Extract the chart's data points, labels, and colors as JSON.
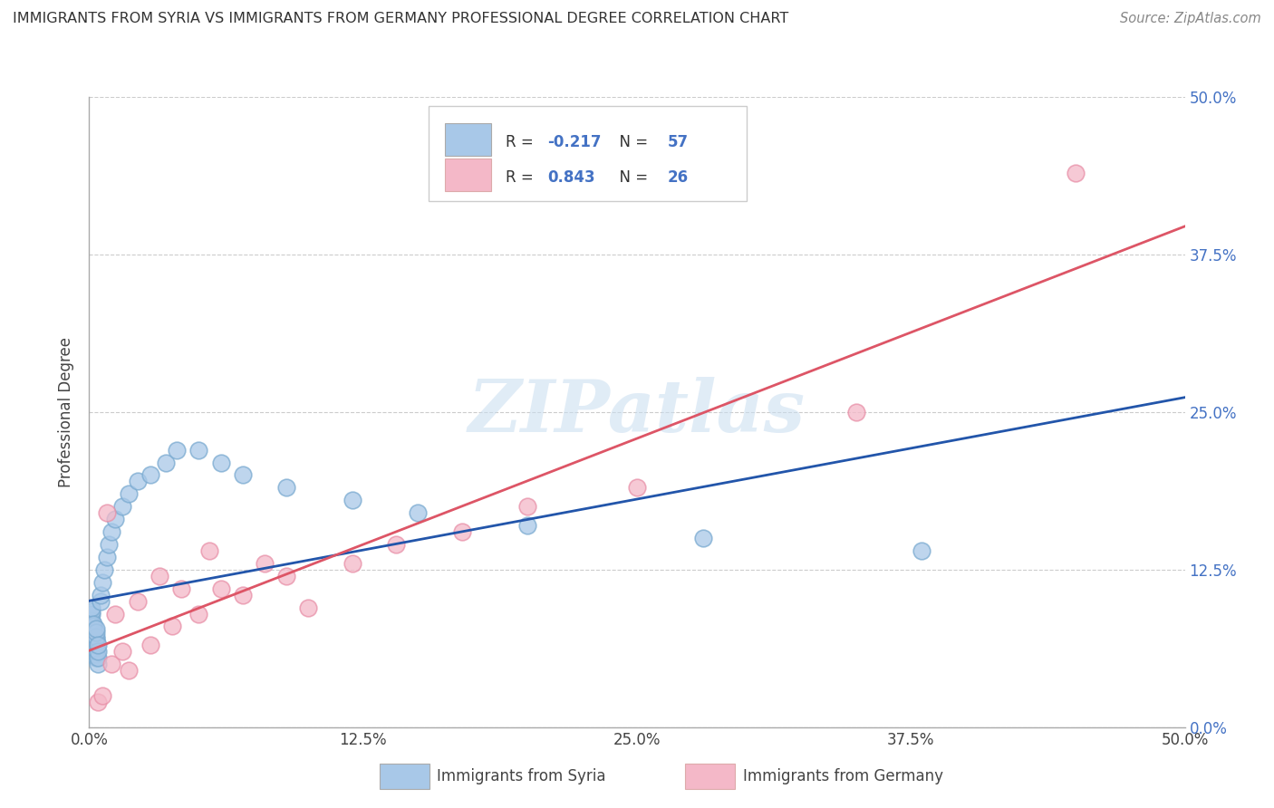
{
  "title": "IMMIGRANTS FROM SYRIA VS IMMIGRANTS FROM GERMANY PROFESSIONAL DEGREE CORRELATION CHART",
  "source": "Source: ZipAtlas.com",
  "ylabel": "Professional Degree",
  "x_tick_labels": [
    "0.0%",
    "12.5%",
    "25.0%",
    "37.5%",
    "50.0%"
  ],
  "y_tick_labels": [
    "0.0%",
    "12.5%",
    "25.0%",
    "37.5%",
    "50.0%"
  ],
  "x_ticks": [
    0.0,
    0.125,
    0.25,
    0.375,
    0.5
  ],
  "y_ticks": [
    0.0,
    0.125,
    0.25,
    0.375,
    0.5
  ],
  "xlim": [
    0.0,
    0.5
  ],
  "ylim": [
    0.0,
    0.5
  ],
  "legend_labels": [
    "Immigrants from Syria",
    "Immigrants from Germany"
  ],
  "legend_R": [
    -0.217,
    0.843
  ],
  "legend_N": [
    57,
    26
  ],
  "blue_scatter_color": "#a8c8e8",
  "pink_scatter_color": "#f4b8c8",
  "blue_scatter_edge": "#7aaad0",
  "pink_scatter_edge": "#e890a8",
  "blue_line_color": "#2255aa",
  "pink_line_color": "#dd5566",
  "watermark": "ZIPatlas",
  "background_color": "#ffffff",
  "syria_x": [
    0.001,
    0.001,
    0.001,
    0.001,
    0.001,
    0.001,
    0.001,
    0.001,
    0.001,
    0.001,
    0.002,
    0.002,
    0.002,
    0.002,
    0.002,
    0.002,
    0.002,
    0.002,
    0.002,
    0.002,
    0.003,
    0.003,
    0.003,
    0.003,
    0.003,
    0.003,
    0.003,
    0.003,
    0.003,
    0.003,
    0.004,
    0.004,
    0.004,
    0.004,
    0.005,
    0.005,
    0.006,
    0.007,
    0.008,
    0.009,
    0.01,
    0.012,
    0.015,
    0.018,
    0.022,
    0.028,
    0.035,
    0.04,
    0.05,
    0.06,
    0.07,
    0.09,
    0.12,
    0.15,
    0.2,
    0.28,
    0.38
  ],
  "syria_y": [
    0.065,
    0.07,
    0.072,
    0.075,
    0.08,
    0.082,
    0.085,
    0.09,
    0.092,
    0.095,
    0.06,
    0.062,
    0.065,
    0.068,
    0.07,
    0.072,
    0.075,
    0.077,
    0.08,
    0.082,
    0.055,
    0.058,
    0.06,
    0.062,
    0.065,
    0.068,
    0.07,
    0.072,
    0.075,
    0.078,
    0.05,
    0.055,
    0.06,
    0.065,
    0.1,
    0.105,
    0.115,
    0.125,
    0.135,
    0.145,
    0.155,
    0.165,
    0.175,
    0.185,
    0.195,
    0.2,
    0.21,
    0.22,
    0.22,
    0.21,
    0.2,
    0.19,
    0.18,
    0.17,
    0.16,
    0.15,
    0.14
  ],
  "germany_x": [
    0.004,
    0.006,
    0.008,
    0.01,
    0.012,
    0.015,
    0.018,
    0.022,
    0.028,
    0.032,
    0.038,
    0.042,
    0.05,
    0.055,
    0.06,
    0.07,
    0.08,
    0.09,
    0.1,
    0.12,
    0.14,
    0.17,
    0.2,
    0.25,
    0.35,
    0.45
  ],
  "germany_y": [
    0.02,
    0.025,
    0.17,
    0.05,
    0.09,
    0.06,
    0.045,
    0.1,
    0.065,
    0.12,
    0.08,
    0.11,
    0.09,
    0.14,
    0.11,
    0.105,
    0.13,
    0.12,
    0.095,
    0.13,
    0.145,
    0.155,
    0.175,
    0.19,
    0.25,
    0.44
  ]
}
